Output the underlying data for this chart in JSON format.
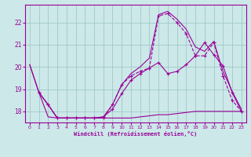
{
  "background_color": "#cce8e8",
  "grid_color": "#a0c8c8",
  "line_color": "#990099",
  "xlabel": "Windchill (Refroidissement éolien,°C)",
  "xlim": [
    -0.5,
    23.5
  ],
  "ylim": [
    17.5,
    22.8
  ],
  "yticks": [
    18,
    19,
    20,
    21,
    22
  ],
  "xticks": [
    0,
    1,
    2,
    3,
    4,
    5,
    6,
    7,
    8,
    9,
    10,
    11,
    12,
    13,
    14,
    15,
    16,
    17,
    18,
    19,
    20,
    21,
    22,
    23
  ],
  "series": [
    {
      "x": [
        0,
        1,
        2,
        3,
        4,
        5,
        6,
        7,
        8,
        9,
        10,
        11,
        12,
        13,
        14,
        15,
        16,
        17,
        18,
        19,
        20,
        21,
        22,
        23
      ],
      "y": [
        20.1,
        18.85,
        17.75,
        17.7,
        17.7,
        17.7,
        17.7,
        17.7,
        17.7,
        17.7,
        17.7,
        17.7,
        17.75,
        17.8,
        17.85,
        17.85,
        17.9,
        17.95,
        18.0,
        18.0,
        18.0,
        18.0,
        18.0,
        18.0
      ],
      "marker": false,
      "linestyle": "-"
    },
    {
      "x": [
        1,
        2,
        3,
        4,
        5,
        6,
        7,
        8,
        9,
        10,
        11,
        12,
        13,
        14,
        15,
        16,
        17,
        18,
        19,
        20,
        21,
        22,
        23
      ],
      "y": [
        18.85,
        18.3,
        17.7,
        17.7,
        17.7,
        17.7,
        17.7,
        17.7,
        18.3,
        19.2,
        19.6,
        19.8,
        19.95,
        22.3,
        22.4,
        22.0,
        21.5,
        20.5,
        20.5,
        21.1,
        19.6,
        18.5,
        18.0
      ],
      "marker": true,
      "linestyle": "--"
    },
    {
      "x": [
        1,
        2,
        3,
        4,
        5,
        6,
        7,
        8,
        9,
        10,
        11,
        12,
        13,
        14,
        15,
        16,
        17,
        18,
        19,
        20,
        21,
        22,
        23
      ],
      "y": [
        18.85,
        18.3,
        17.7,
        17.7,
        17.7,
        17.7,
        17.7,
        17.75,
        18.1,
        18.8,
        19.4,
        19.7,
        19.95,
        20.2,
        19.7,
        19.8,
        20.1,
        20.5,
        21.1,
        20.55,
        20.05,
        18.85,
        18.0
      ],
      "marker": true,
      "linestyle": "-"
    },
    {
      "x": [
        0,
        1,
        2,
        3,
        4,
        5,
        6,
        7,
        8,
        9,
        10,
        11,
        12,
        13,
        14,
        15,
        16,
        17,
        18,
        19,
        20,
        21,
        22,
        23
      ],
      "y": [
        20.1,
        18.85,
        18.3,
        17.7,
        17.7,
        17.7,
        17.7,
        17.7,
        17.75,
        18.3,
        19.2,
        19.7,
        20.0,
        20.4,
        22.35,
        22.5,
        22.15,
        21.7,
        20.9,
        20.7,
        21.15,
        19.8,
        18.9,
        18.1
      ],
      "marker": false,
      "linestyle": "-"
    }
  ]
}
